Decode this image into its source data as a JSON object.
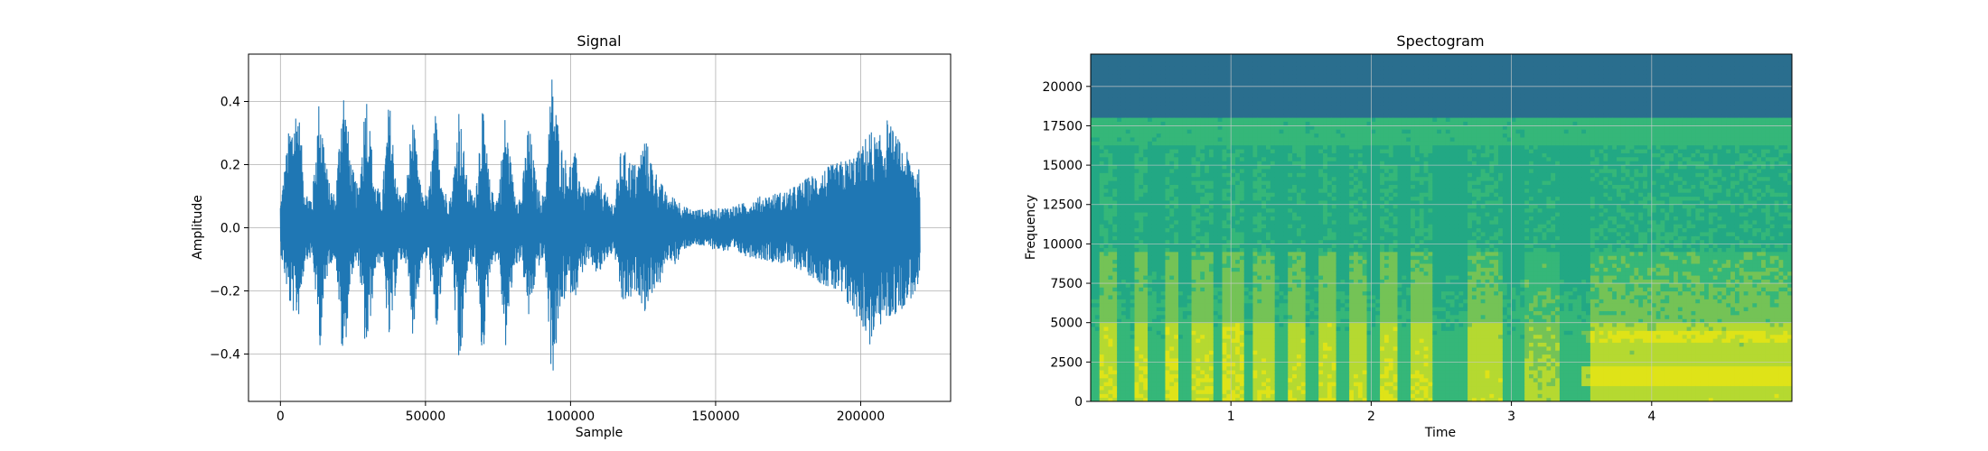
{
  "chart_data": [
    {
      "type": "line",
      "title": "Signal",
      "xlabel": "Sample",
      "ylabel": "Amplitude",
      "xlim": [
        -11000,
        231000
      ],
      "ylim": [
        -0.55,
        0.55
      ],
      "grid": true,
      "color": "#1f77b4",
      "xticks": [
        0,
        50000,
        100000,
        150000,
        200000
      ],
      "xtick_labels": [
        "0",
        "50000",
        "100000",
        "150000",
        "200000"
      ],
      "yticks": [
        -0.4,
        -0.2,
        0.0,
        0.2,
        0.4
      ],
      "ytick_labels": [
        "−0.4",
        "−0.2",
        "0.0",
        "0.2",
        "0.4"
      ],
      "sample_range": [
        0,
        220500
      ],
      "envelope": {
        "x": [
          0,
          3000,
          6000,
          8500,
          11000,
          13500,
          16500,
          19000,
          21500,
          24500,
          27000,
          29500,
          32500,
          35000,
          37500,
          40500,
          43000,
          45500,
          48500,
          51000,
          53500,
          56500,
          59000,
          61500,
          64500,
          67000,
          69500,
          72500,
          75000,
          77500,
          80500,
          83000,
          85500,
          88500,
          91000,
          93500,
          96500,
          99000,
          101500,
          104500,
          107000,
          109500,
          112500,
          115000,
          117500,
          120500,
          123000,
          125500,
          128500,
          131000,
          133500,
          136500,
          139000,
          141500,
          145000,
          150000,
          155000,
          160000,
          165000,
          170000,
          175000,
          180000,
          185000,
          190000,
          195000,
          200000,
          203000,
          206000,
          209000,
          212000,
          215000,
          218000,
          220500
        ],
        "upper": [
          0.08,
          0.32,
          0.42,
          0.12,
          0.1,
          0.44,
          0.15,
          0.1,
          0.49,
          0.2,
          0.12,
          0.47,
          0.15,
          0.1,
          0.42,
          0.12,
          0.1,
          0.36,
          0.12,
          0.1,
          0.37,
          0.12,
          0.1,
          0.4,
          0.14,
          0.1,
          0.4,
          0.12,
          0.1,
          0.37,
          0.13,
          0.1,
          0.35,
          0.13,
          0.1,
          0.5,
          0.28,
          0.2,
          0.24,
          0.13,
          0.12,
          0.17,
          0.1,
          0.08,
          0.26,
          0.22,
          0.2,
          0.3,
          0.2,
          0.15,
          0.1,
          0.1,
          0.07,
          0.06,
          0.06,
          0.06,
          0.07,
          0.08,
          0.1,
          0.11,
          0.12,
          0.15,
          0.18,
          0.2,
          0.22,
          0.25,
          0.32,
          0.28,
          0.35,
          0.3,
          0.25,
          0.22,
          0.18
        ],
        "lower": [
          -0.08,
          -0.25,
          -0.3,
          -0.1,
          -0.1,
          -0.38,
          -0.12,
          -0.1,
          -0.46,
          -0.15,
          -0.12,
          -0.44,
          -0.14,
          -0.1,
          -0.39,
          -0.12,
          -0.1,
          -0.34,
          -0.12,
          -0.1,
          -0.36,
          -0.12,
          -0.1,
          -0.51,
          -0.14,
          -0.1,
          -0.44,
          -0.12,
          -0.1,
          -0.39,
          -0.13,
          -0.1,
          -0.3,
          -0.13,
          -0.1,
          -0.5,
          -0.27,
          -0.2,
          -0.22,
          -0.13,
          -0.12,
          -0.16,
          -0.1,
          -0.08,
          -0.25,
          -0.24,
          -0.2,
          -0.27,
          -0.2,
          -0.18,
          -0.1,
          -0.12,
          -0.07,
          -0.06,
          -0.06,
          -0.07,
          -0.08,
          -0.09,
          -0.1,
          -0.11,
          -0.12,
          -0.14,
          -0.17,
          -0.2,
          -0.25,
          -0.3,
          -0.38,
          -0.32,
          -0.3,
          -0.28,
          -0.25,
          -0.22,
          -0.2
        ]
      }
    },
    {
      "type": "heatmap",
      "title": "Spectogram",
      "xlabel": "Time",
      "ylabel": "Frequency",
      "xlim": [
        0,
        5
      ],
      "ylim": [
        0,
        22050
      ],
      "grid": true,
      "xticks": [
        1,
        2,
        3,
        4
      ],
      "xtick_labels": [
        "1",
        "2",
        "3",
        "4"
      ],
      "yticks": [
        0,
        2500,
        5000,
        7500,
        10000,
        12500,
        15000,
        17500,
        20000
      ],
      "ytick_labels": [
        "0",
        "2500",
        "5000",
        "7500",
        "10000",
        "12500",
        "15000",
        "17500",
        "20000"
      ],
      "colormap": [
        "#2a6e8e",
        "#27928a",
        "#22a884",
        "#35b779",
        "#74c356",
        "#b5d931",
        "#dfe318"
      ],
      "cutoff_frequency": 18000,
      "speech_bursts": [
        {
          "t_start": 0.05,
          "t_end": 0.2,
          "intensity": 0.9
        },
        {
          "t_start": 0.3,
          "t_end": 0.42,
          "intensity": 0.9
        },
        {
          "t_start": 0.52,
          "t_end": 0.64,
          "intensity": 0.95
        },
        {
          "t_start": 0.72,
          "t_end": 0.86,
          "intensity": 0.9
        },
        {
          "t_start": 0.95,
          "t_end": 1.1,
          "intensity": 0.95
        },
        {
          "t_start": 1.17,
          "t_end": 1.3,
          "intensity": 0.85
        },
        {
          "t_start": 1.4,
          "t_end": 1.53,
          "intensity": 0.85
        },
        {
          "t_start": 1.62,
          "t_end": 1.75,
          "intensity": 0.9
        },
        {
          "t_start": 1.85,
          "t_end": 1.97,
          "intensity": 0.85
        },
        {
          "t_start": 2.05,
          "t_end": 2.2,
          "intensity": 0.95
        },
        {
          "t_start": 2.28,
          "t_end": 2.43,
          "intensity": 0.9
        },
        {
          "t_start": 2.7,
          "t_end": 2.95,
          "intensity": 0.8
        },
        {
          "t_start": 3.1,
          "t_end": 3.35,
          "intensity": 0.6
        },
        {
          "t_start": 3.55,
          "t_end": 5.0,
          "intensity": 0.75
        }
      ]
    }
  ]
}
